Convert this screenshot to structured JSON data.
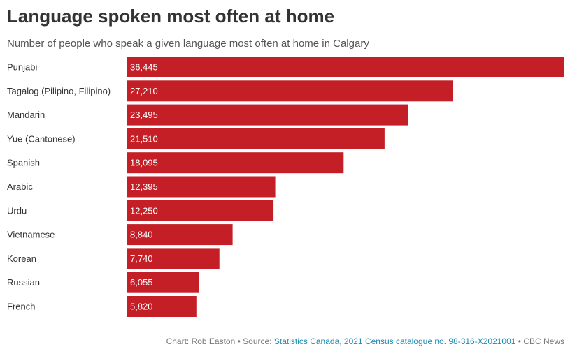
{
  "title": "Language spoken most often at home",
  "subtitle": "Number of people who speak a given language most often at home in Calgary",
  "chart_data": {
    "type": "bar",
    "orientation": "horizontal",
    "categories": [
      "Punjabi",
      "Tagalog (Pilipino, Filipino)",
      "Mandarin",
      "Yue (Cantonese)",
      "Spanish",
      "Arabic",
      "Urdu",
      "Vietnamese",
      "Korean",
      "Russian",
      "French"
    ],
    "values": [
      36445,
      27210,
      23495,
      21510,
      18095,
      12395,
      12250,
      8840,
      7740,
      6055,
      5820
    ],
    "value_labels": [
      "36,445",
      "27,210",
      "23,495",
      "21,510",
      "18,095",
      "12,395",
      "12,250",
      "8,840",
      "7,740",
      "6,055",
      "5,820"
    ],
    "xlim": [
      0,
      36445
    ],
    "grid": false,
    "bar_color": "#c41e26"
  },
  "footer": {
    "credit": "Chart: Rob Easton",
    "separator": " • ",
    "source_label": "Source: ",
    "source_link": "Statistics Canada, 2021 Census catalogue no. 98-316-X2021001",
    "publisher": "CBC News"
  }
}
